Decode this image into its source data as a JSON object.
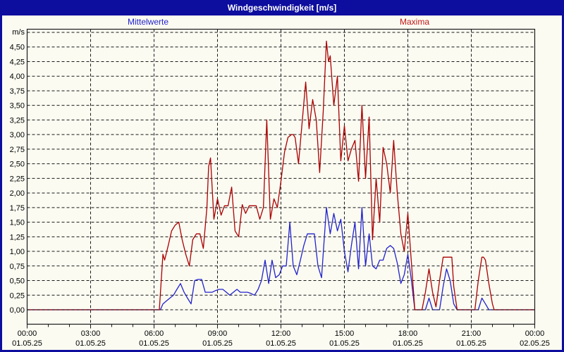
{
  "window": {
    "title": "Windgeschwindigkeit [m/s]"
  },
  "colors": {
    "title_bar_bg": "#0D0D9E",
    "title_text": "#FFFFFF",
    "window_border": "#0D0D9E",
    "background": "#FBFBF2",
    "axis_and_grid": "#1A1A1A",
    "series_mittelwerte": "#2222CC",
    "series_maxima": "#AA0000",
    "legend_maxima_text": "#C01818",
    "legend_mittelwerte_text": "#2222CC"
  },
  "chart_data": {
    "type": "line",
    "title": "Windgeschwindigkeit [m/s]",
    "unit_label": "m/s",
    "grid": true,
    "legend_position": "top",
    "x_axis": {
      "range_hours": [
        0,
        24
      ],
      "major_tick_hours": 3,
      "minor_tick_hours": 1,
      "ticks": [
        {
          "time": "00:00",
          "date": "01.05.25"
        },
        {
          "time": "03:00",
          "date": "01.05.25"
        },
        {
          "time": "06:00",
          "date": "01.05.25"
        },
        {
          "time": "09:00",
          "date": "01.05.25"
        },
        {
          "time": "12:00",
          "date": "01.05.25"
        },
        {
          "time": "15:00",
          "date": "01.05.25"
        },
        {
          "time": "18:00",
          "date": "01.05.25"
        },
        {
          "time": "21:00",
          "date": "01.05.25"
        },
        {
          "time": "00:00",
          "date": "02.05.25"
        }
      ]
    },
    "y_axis": {
      "min": 0,
      "max": 4.5,
      "step": 0.25,
      "top_unlabeled_gridline": 4.75,
      "labels": [
        "0,00",
        "0,25",
        "0,50",
        "0,75",
        "1,00",
        "1,25",
        "1,50",
        "1,75",
        "2,00",
        "2,25",
        "2,50",
        "2,75",
        "3,00",
        "3,25",
        "3,50",
        "3,75",
        "4,00",
        "4,25",
        "4,50"
      ]
    },
    "series": [
      {
        "name": "Mittelwerte",
        "color": "#2222CC",
        "points": [
          [
            0,
            0
          ],
          [
            6.3,
            0
          ],
          [
            6.42,
            0.1
          ],
          [
            6.58,
            0.15
          ],
          [
            6.75,
            0.2
          ],
          [
            6.92,
            0.25
          ],
          [
            7.08,
            0.35
          ],
          [
            7.25,
            0.45
          ],
          [
            7.42,
            0.3
          ],
          [
            7.58,
            0.2
          ],
          [
            7.75,
            0.1
          ],
          [
            7.92,
            0.5
          ],
          [
            8.08,
            0.52
          ],
          [
            8.25,
            0.52
          ],
          [
            8.42,
            0.3
          ],
          [
            8.58,
            0.3
          ],
          [
            8.75,
            0.3
          ],
          [
            8.92,
            0.33
          ],
          [
            9.08,
            0.35
          ],
          [
            9.25,
            0.35
          ],
          [
            9.42,
            0.3
          ],
          [
            9.58,
            0.25
          ],
          [
            9.75,
            0.3
          ],
          [
            9.92,
            0.35
          ],
          [
            10.08,
            0.3
          ],
          [
            10.25,
            0.3
          ],
          [
            10.42,
            0.3
          ],
          [
            10.58,
            0.28
          ],
          [
            10.75,
            0.25
          ],
          [
            10.92,
            0.35
          ],
          [
            11.08,
            0.5
          ],
          [
            11.25,
            0.85
          ],
          [
            11.42,
            0.45
          ],
          [
            11.58,
            0.85
          ],
          [
            11.75,
            0.55
          ],
          [
            11.92,
            0.6
          ],
          [
            12.08,
            0.75
          ],
          [
            12.25,
            0.75
          ],
          [
            12.42,
            1.5
          ],
          [
            12.58,
            0.75
          ],
          [
            12.75,
            0.6
          ],
          [
            12.92,
            0.85
          ],
          [
            13.08,
            1.1
          ],
          [
            13.25,
            1.3
          ],
          [
            13.42,
            1.3
          ],
          [
            13.58,
            1.3
          ],
          [
            13.75,
            0.75
          ],
          [
            13.92,
            0.55
          ],
          [
            14.15,
            1.75
          ],
          [
            14.33,
            1.3
          ],
          [
            14.5,
            1.65
          ],
          [
            14.67,
            1.35
          ],
          [
            14.83,
            1.55
          ],
          [
            15,
            1.0
          ],
          [
            15.17,
            0.65
          ],
          [
            15.33,
            1.1
          ],
          [
            15.5,
            1.5
          ],
          [
            15.67,
            0.7
          ],
          [
            15.83,
            1.75
          ],
          [
            16,
            0.75
          ],
          [
            16.17,
            1.3
          ],
          [
            16.33,
            0.75
          ],
          [
            16.5,
            0.7
          ],
          [
            16.67,
            0.85
          ],
          [
            16.83,
            0.85
          ],
          [
            17,
            1.05
          ],
          [
            17.17,
            1.1
          ],
          [
            17.33,
            1.05
          ],
          [
            17.5,
            0.8
          ],
          [
            17.67,
            0.45
          ],
          [
            17.83,
            0.6
          ],
          [
            18,
            0.95
          ],
          [
            18.17,
            0.5
          ],
          [
            18.33,
            0
          ],
          [
            18.83,
            0
          ],
          [
            19,
            0.2
          ],
          [
            19.17,
            0
          ],
          [
            19.5,
            0
          ],
          [
            19.67,
            0.4
          ],
          [
            19.83,
            0.7
          ],
          [
            20,
            0.5
          ],
          [
            20.17,
            0.1
          ],
          [
            20.33,
            0
          ],
          [
            21.33,
            0
          ],
          [
            21.5,
            0.2
          ],
          [
            21.67,
            0.1
          ],
          [
            21.83,
            0
          ],
          [
            24,
            0
          ]
        ]
      },
      {
        "name": "Maxima",
        "color": "#AA0000",
        "points": [
          [
            0,
            0
          ],
          [
            6.25,
            0
          ],
          [
            6.42,
            0.95
          ],
          [
            6.5,
            0.85
          ],
          [
            6.67,
            1.1
          ],
          [
            6.83,
            1.35
          ],
          [
            7,
            1.45
          ],
          [
            7.17,
            1.5
          ],
          [
            7.33,
            1.2
          ],
          [
            7.5,
            0.95
          ],
          [
            7.67,
            0.75
          ],
          [
            7.83,
            1.2
          ],
          [
            8,
            1.3
          ],
          [
            8.17,
            1.3
          ],
          [
            8.33,
            1.05
          ],
          [
            8.5,
            1.75
          ],
          [
            8.58,
            2.45
          ],
          [
            8.67,
            2.6
          ],
          [
            8.83,
            1.55
          ],
          [
            9,
            1.9
          ],
          [
            9.17,
            1.62
          ],
          [
            9.33,
            1.78
          ],
          [
            9.5,
            1.78
          ],
          [
            9.67,
            2.1
          ],
          [
            9.83,
            1.35
          ],
          [
            10,
            1.25
          ],
          [
            10.17,
            1.8
          ],
          [
            10.33,
            1.65
          ],
          [
            10.5,
            1.78
          ],
          [
            10.67,
            1.78
          ],
          [
            10.83,
            1.78
          ],
          [
            11,
            1.55
          ],
          [
            11.17,
            1.75
          ],
          [
            11.33,
            3.25
          ],
          [
            11.5,
            1.55
          ],
          [
            11.67,
            1.9
          ],
          [
            11.83,
            1.75
          ],
          [
            12,
            2.2
          ],
          [
            12.17,
            2.7
          ],
          [
            12.33,
            2.95
          ],
          [
            12.5,
            3.0
          ],
          [
            12.58,
            3.0
          ],
          [
            12.67,
            2.95
          ],
          [
            12.83,
            2.5
          ],
          [
            13,
            3.2
          ],
          [
            13.17,
            3.9
          ],
          [
            13.33,
            3.1
          ],
          [
            13.5,
            3.6
          ],
          [
            13.67,
            3.25
          ],
          [
            13.83,
            2.35
          ],
          [
            14,
            3.4
          ],
          [
            14.15,
            4.6
          ],
          [
            14.25,
            4.25
          ],
          [
            14.33,
            4.35
          ],
          [
            14.5,
            3.5
          ],
          [
            14.67,
            4.0
          ],
          [
            14.83,
            2.55
          ],
          [
            15,
            3.15
          ],
          [
            15.17,
            2.55
          ],
          [
            15.33,
            2.75
          ],
          [
            15.5,
            2.9
          ],
          [
            15.67,
            2.2
          ],
          [
            15.83,
            3.5
          ],
          [
            16,
            2.25
          ],
          [
            16.17,
            3.3
          ],
          [
            16.33,
            1.2
          ],
          [
            16.5,
            2.25
          ],
          [
            16.67,
            1.5
          ],
          [
            16.83,
            2.78
          ],
          [
            17,
            2.5
          ],
          [
            17.17,
            2.0
          ],
          [
            17.33,
            2.9
          ],
          [
            17.5,
            2.0
          ],
          [
            17.67,
            1.3
          ],
          [
            17.83,
            1.0
          ],
          [
            18,
            1.65
          ],
          [
            18.17,
            0.8
          ],
          [
            18.33,
            0
          ],
          [
            18.67,
            0
          ],
          [
            18.83,
            0.3
          ],
          [
            19,
            0.7
          ],
          [
            19.17,
            0.3
          ],
          [
            19.33,
            0.05
          ],
          [
            19.5,
            0.5
          ],
          [
            19.67,
            0.9
          ],
          [
            19.83,
            0.9
          ],
          [
            20.08,
            0.9
          ],
          [
            20.17,
            0.4
          ],
          [
            20.33,
            0
          ],
          [
            21.17,
            0
          ],
          [
            21.33,
            0.5
          ],
          [
            21.5,
            0.9
          ],
          [
            21.58,
            0.9
          ],
          [
            21.67,
            0.85
          ],
          [
            21.83,
            0.45
          ],
          [
            22,
            0.1
          ],
          [
            22.08,
            0
          ],
          [
            24,
            0
          ]
        ]
      }
    ]
  }
}
